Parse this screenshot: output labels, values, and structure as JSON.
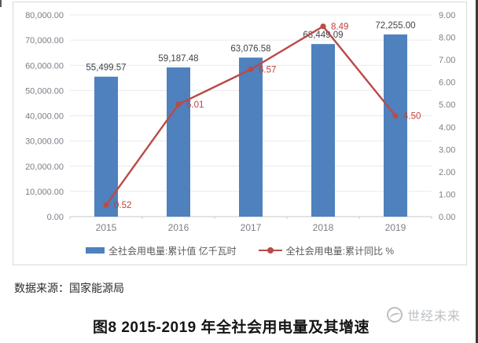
{
  "chart_data": {
    "type": "bar",
    "combo": "bar+line, dual axis",
    "title": "图8 2015-2019 年全社会用电量及其增速",
    "categories": [
      "2015",
      "2016",
      "2017",
      "2018",
      "2019"
    ],
    "series": [
      {
        "name": "全社会用电量:累计值 亿千瓦时",
        "type": "bar",
        "axis": "left",
        "values": [
          55499.57,
          59187.48,
          63076.58,
          68449.09,
          72255.0
        ],
        "labels": [
          "55,499.57",
          "59,187.48",
          "63,076.58",
          "68,449.09",
          "72,255.00"
        ]
      },
      {
        "name": "全社会用电量:累计同比 %",
        "type": "line",
        "axis": "right",
        "values": [
          0.52,
          5.01,
          6.57,
          8.49,
          4.5
        ],
        "labels": [
          "0.52",
          "5.01",
          "6.57",
          "8.49",
          "4.50"
        ]
      }
    ],
    "left_axis": {
      "min": 0,
      "max": 80000,
      "ticks": [
        "0.00",
        "10,000.00",
        "20,000.00",
        "30,000.00",
        "40,000.00",
        "50,000.00",
        "60,000.00",
        "70,000.00",
        "80,000.00"
      ]
    },
    "right_axis": {
      "min": 0,
      "max": 9,
      "ticks": [
        "0.00",
        "1.00",
        "2.00",
        "3.00",
        "4.00",
        "5.00",
        "6.00",
        "7.00",
        "8.00",
        "9.00"
      ]
    },
    "legend_position": "bottom",
    "grid": true
  },
  "footer": {
    "source_note": "数据来源：国家能源局",
    "caption": "图8 2015-2019 年全社会用电量及其增速",
    "watermark": "世经未来"
  },
  "colors": {
    "bar": "#4e81bd",
    "line": "#b94b48",
    "line_label": "#bf403c",
    "bar_label": "#3f4347",
    "grid": "#e6e9ed",
    "axis": "#c3c8cf",
    "tick_text": "#7a7f87",
    "legend_text": "#595959",
    "watermark": "#bcc0c5",
    "border": "#d9d9d9",
    "edge_strip": "#3a3a3a"
  }
}
